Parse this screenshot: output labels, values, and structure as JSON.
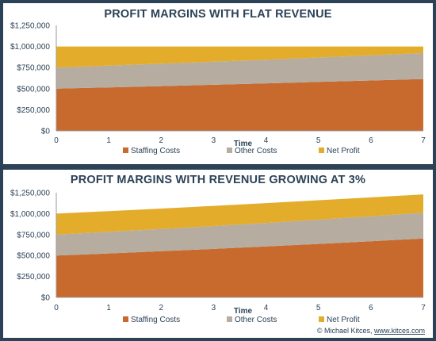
{
  "chart_data": [
    {
      "type": "area",
      "stacked": true,
      "title": "PROFIT MARGINS WITH FLAT REVENUE",
      "xlabel": "Time",
      "ylabel": "",
      "x": [
        0,
        1,
        2,
        3,
        4,
        5,
        6,
        7
      ],
      "ylim": [
        0,
        1250000
      ],
      "yticks": [
        "$0",
        "$250,000",
        "$500,000",
        "$750,000",
        "$1,000,000",
        "$1,250,000"
      ],
      "ytick_values": [
        0,
        250000,
        500000,
        750000,
        1000000,
        1250000
      ],
      "grid": false,
      "legend": "bottom",
      "series": [
        {
          "name": "Staffing Costs",
          "color": "#c8692d",
          "values": [
            500000,
            515000,
            530450,
            546364,
            562754,
            579637,
            597026,
            614937
          ]
        },
        {
          "name": "Other Costs",
          "color": "#b6ada0",
          "values": [
            250000,
            257500,
            265225,
            273182,
            281377,
            289819,
            298513,
            307468
          ]
        },
        {
          "name": "Net Profit",
          "color": "#e4ac2b",
          "values": [
            250000,
            227500,
            204325,
            180454,
            155869,
            130544,
            104461,
            77595
          ]
        }
      ]
    },
    {
      "type": "area",
      "stacked": true,
      "title": "PROFIT MARGINS WITH REVENUE GROWING AT 3%",
      "xlabel": "Time",
      "ylabel": "",
      "x": [
        0,
        1,
        2,
        3,
        4,
        5,
        6,
        7
      ],
      "ylim": [
        0,
        1250000
      ],
      "yticks": [
        "$0",
        "$250,000",
        "$500,000",
        "$750,000",
        "$1,000,000",
        "$1,250,000"
      ],
      "ytick_values": [
        0,
        250000,
        500000,
        750000,
        1000000,
        1250000
      ],
      "grid": false,
      "legend": "bottom",
      "series": [
        {
          "name": "Staffing Costs",
          "color": "#c8692d",
          "values": [
            500000,
            525000,
            551250,
            578813,
            607753,
            638141,
            670048,
            703550
          ]
        },
        {
          "name": "Other Costs",
          "color": "#b6ada0",
          "values": [
            250000,
            257500,
            265225,
            273182,
            281377,
            289819,
            298513,
            307468
          ]
        },
        {
          "name": "Net Profit",
          "color": "#e4ac2b",
          "values": [
            250000,
            247500,
            244434,
            240743,
            236379,
            232288,
            225492,
            218857
          ]
        }
      ]
    }
  ],
  "footer": {
    "credit": "© Michael Kitces, ",
    "link": "www.kitces.com"
  }
}
